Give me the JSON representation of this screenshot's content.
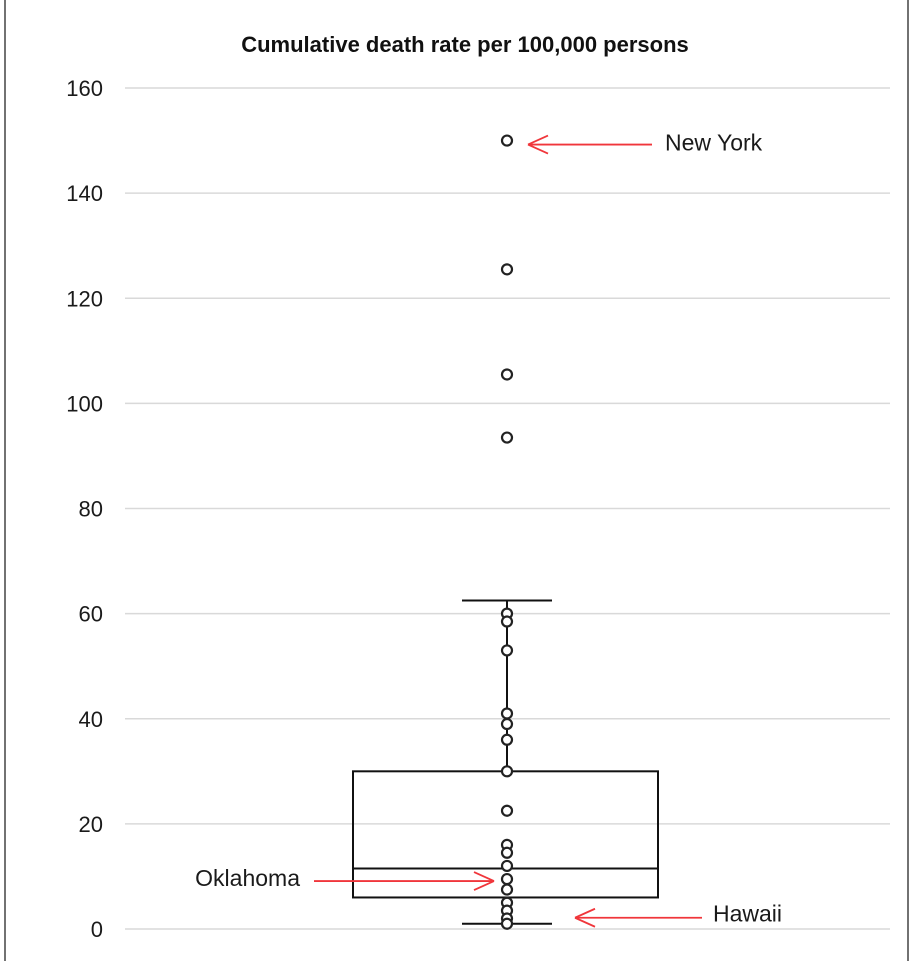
{
  "chart_data": {
    "type": "box",
    "title": "Cumulative death rate per 100,000 persons",
    "xlabel": "",
    "ylabel": "",
    "ylim": [
      0,
      160
    ],
    "yticks": [
      0,
      20,
      40,
      60,
      80,
      100,
      120,
      140,
      160
    ],
    "grid": true,
    "box": {
      "min": 1,
      "q1": 6,
      "median": 11.5,
      "q3": 30,
      "whisker_high": 62.5
    },
    "points": [
      150,
      125.5,
      105.5,
      93.5,
      60,
      58.5,
      53,
      41,
      39,
      36,
      30,
      22.5,
      16,
      14.5,
      12,
      9.5,
      7.5,
      5,
      3.5,
      2,
      1
    ],
    "annotations": [
      {
        "label": "New York",
        "value": 150
      },
      {
        "label": "Oklahoma",
        "value": 9.5
      },
      {
        "label": "Hawaii",
        "value": 1
      }
    ],
    "colors": {
      "points": "#222222",
      "box": "#111111",
      "grid": "#d9d9d9",
      "arrow": "#f0363b"
    }
  }
}
